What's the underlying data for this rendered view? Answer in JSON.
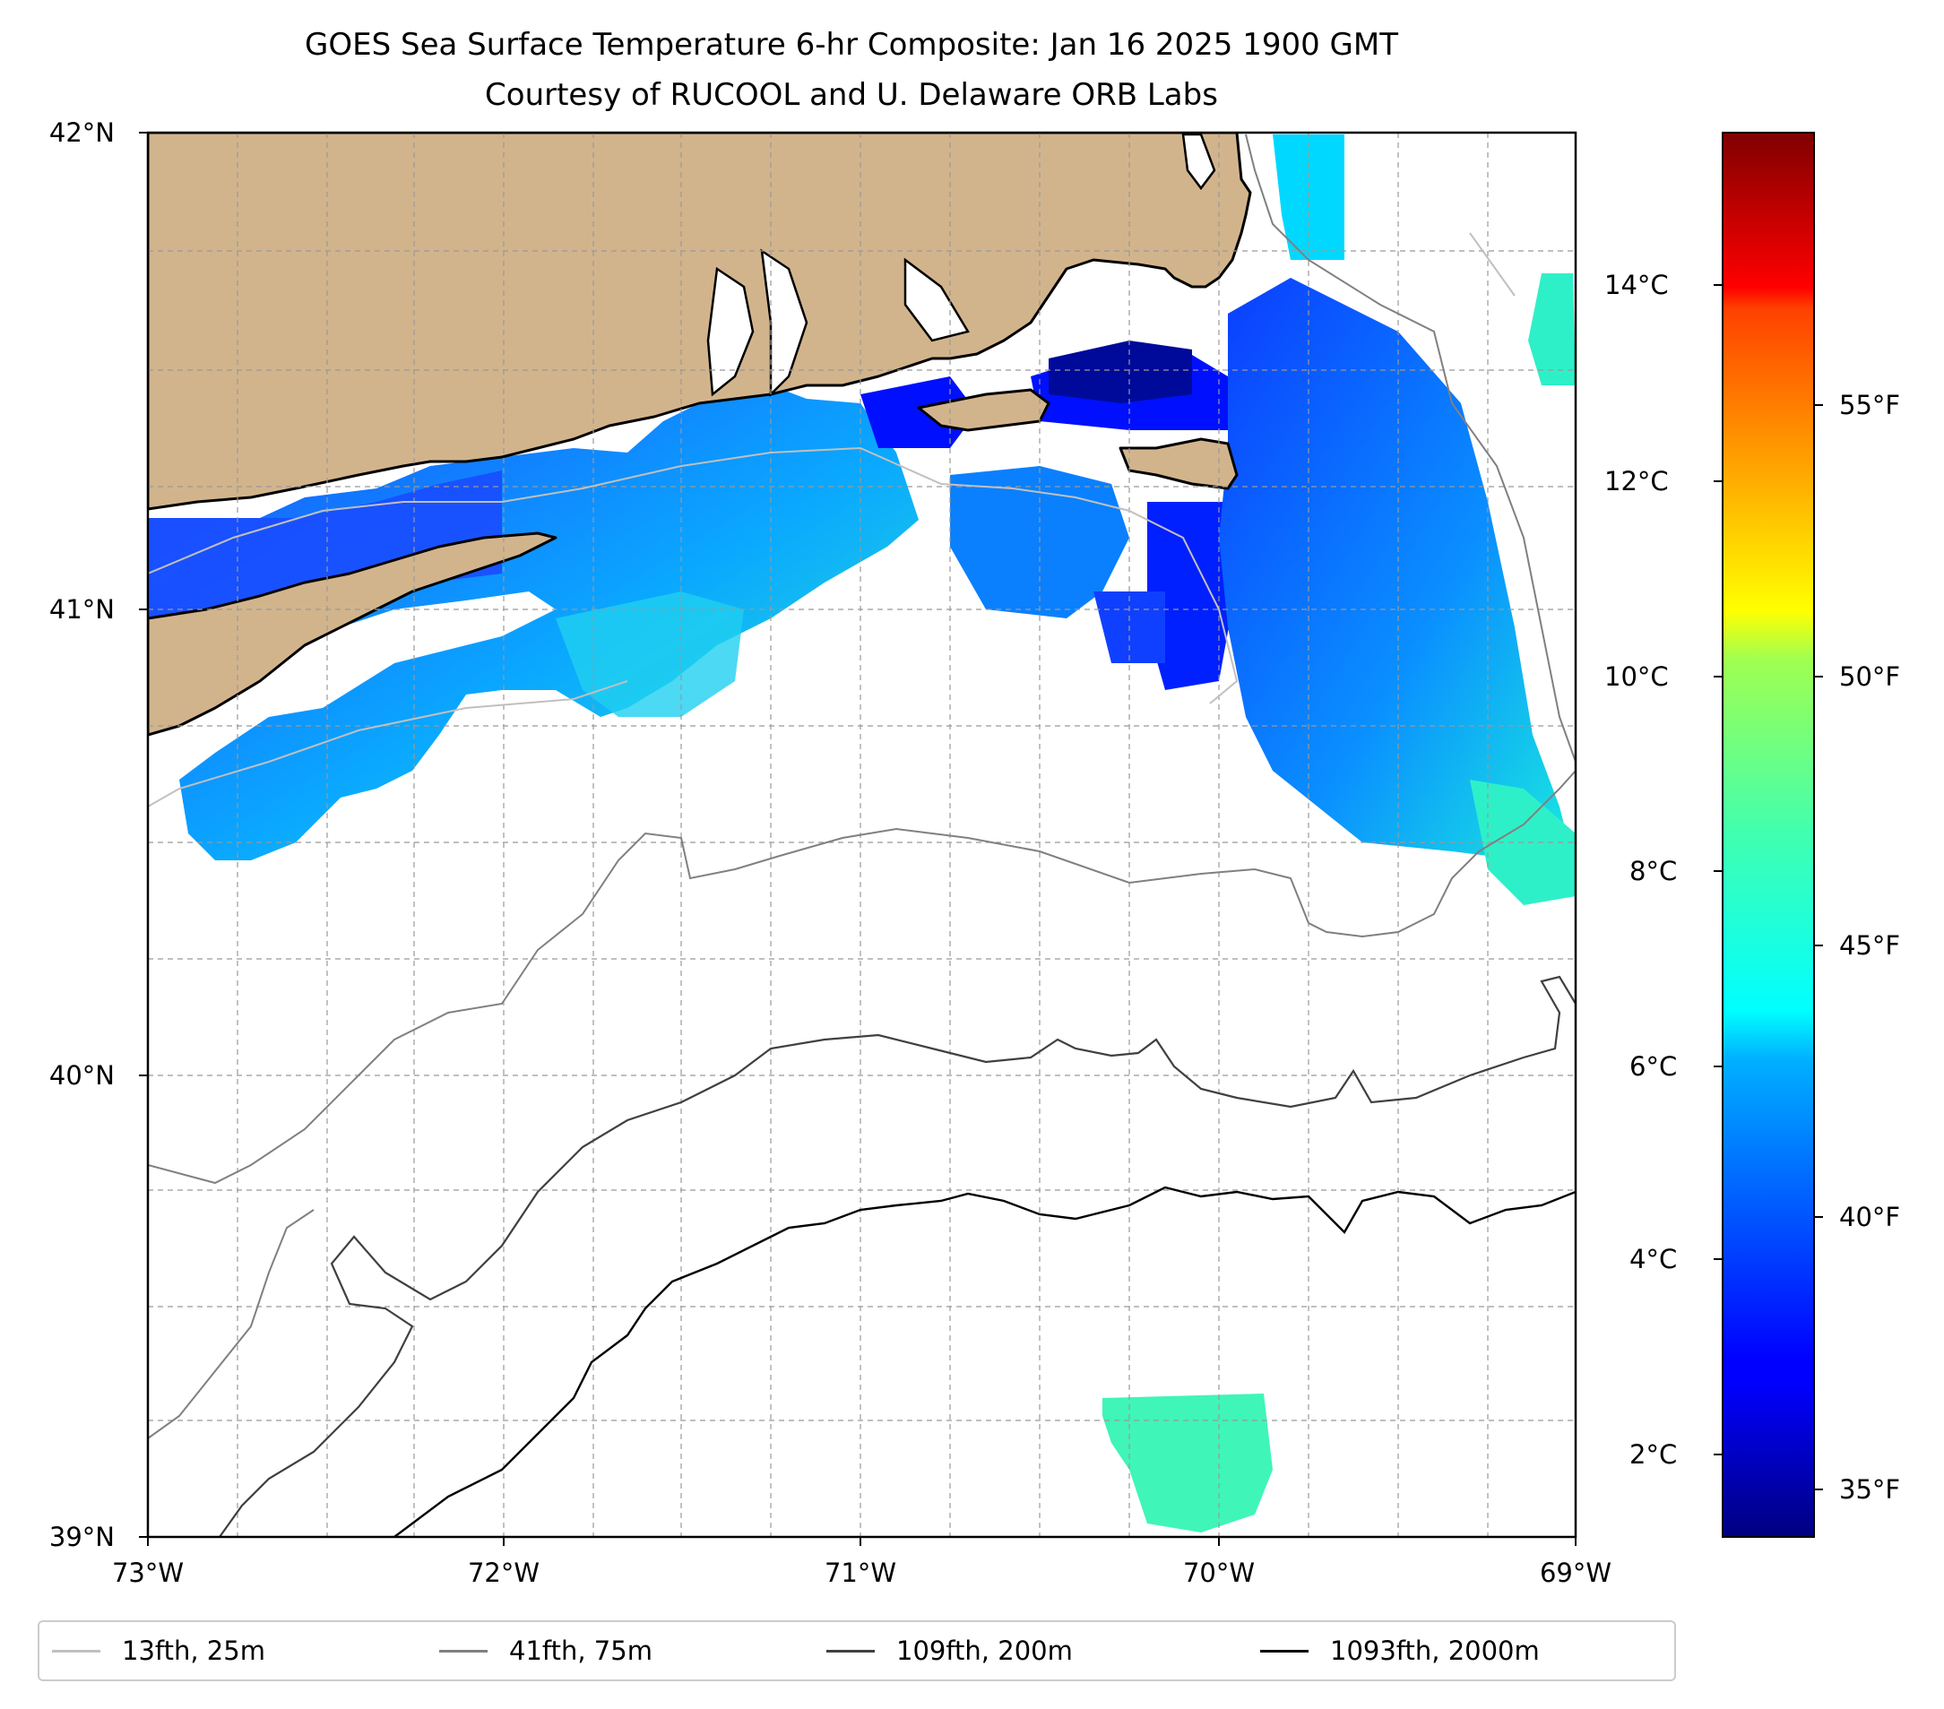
{
  "title": {
    "line1": "GOES Sea Surface Temperature 6-hr Composite: Jan 16 2025 1900 GMT",
    "line2": "Courtesy of RUCOOL and U. Delaware ORB Labs"
  },
  "map": {
    "lon_range": [
      -73,
      -69
    ],
    "lat_range": [
      39,
      42
    ],
    "lat_ticks": [
      "42°N",
      "41°N",
      "40°N",
      "39°N"
    ],
    "lon_ticks": [
      "73°W",
      "72°W",
      "71°W",
      "70°W",
      "69°W"
    ],
    "gridlines": true,
    "land_color": "#d2b48c",
    "coast_color": "#000000"
  },
  "colorbar": {
    "colormap": "jet",
    "celsius_range": [
      1.3,
      15.7
    ],
    "celsius_labels": [
      "14°C",
      "12°C",
      "10°C",
      "8°C",
      "6°C",
      "4°C",
      "2°C"
    ],
    "fahrenheit_labels": [
      "55°F",
      "50°F",
      "45°F",
      "40°F",
      "35°F"
    ]
  },
  "legend": {
    "items": [
      {
        "label": "13fth, 25m",
        "color": "#c0c0c0"
      },
      {
        "label": "41fth, 75m",
        "color": "#808080"
      },
      {
        "label": "109fth, 200m",
        "color": "#404040"
      },
      {
        "label": "1093fth, 2000m",
        "color": "#000000"
      }
    ]
  }
}
